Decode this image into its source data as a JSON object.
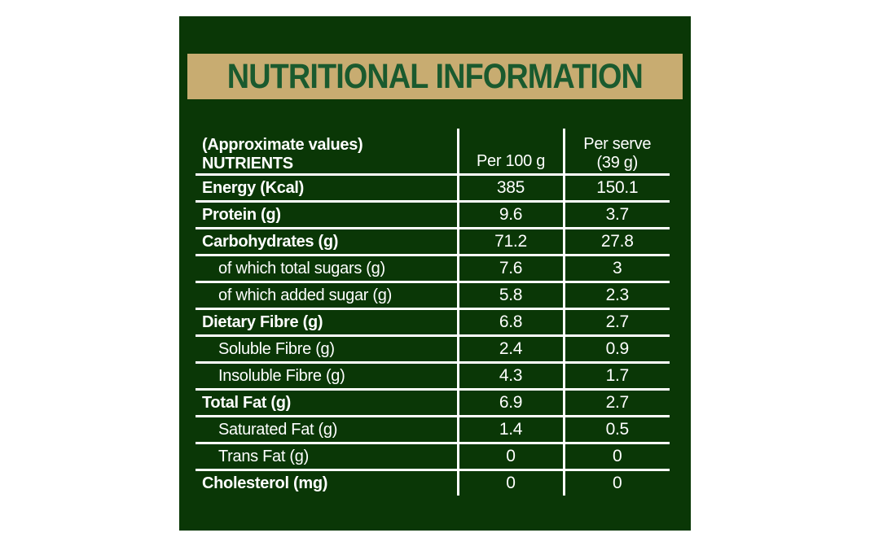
{
  "title": "NUTRITIONAL INFORMATION",
  "colors": {
    "panel_green": "#0a3706",
    "banner_tan": "#c8ac71",
    "title_green": "#1a5a2e",
    "table_text": "#ffffff"
  },
  "table": {
    "header": {
      "approx_label": "(Approximate values)",
      "nutrients_label": "NUTRIENTS",
      "per_100g": "Per 100 g",
      "per_serve_line1": "Per serve",
      "per_serve_line2": "(39 g)"
    },
    "rows": [
      {
        "label": "Energy (Kcal)",
        "per100": "385",
        "perServe": "150.1",
        "bold": true,
        "indent": false
      },
      {
        "label": "Protein (g)",
        "per100": "9.6",
        "perServe": "3.7",
        "bold": true,
        "indent": false
      },
      {
        "label": "Carbohydrates (g)",
        "per100": "71.2",
        "perServe": "27.8",
        "bold": true,
        "indent": false
      },
      {
        "label": "of which total sugars (g)",
        "per100": "7.6",
        "perServe": "3",
        "bold": false,
        "indent": true
      },
      {
        "label": "of which added sugar (g)",
        "per100": "5.8",
        "perServe": "2.3",
        "bold": false,
        "indent": true
      },
      {
        "label": "Dietary Fibre (g)",
        "per100": "6.8",
        "perServe": "2.7",
        "bold": true,
        "indent": false
      },
      {
        "label": "Soluble Fibre (g)",
        "per100": "2.4",
        "perServe": "0.9",
        "bold": false,
        "indent": true
      },
      {
        "label": "Insoluble Fibre (g)",
        "per100": "4.3",
        "perServe": "1.7",
        "bold": false,
        "indent": true
      },
      {
        "label": "Total Fat (g)",
        "per100": "6.9",
        "perServe": "2.7",
        "bold": true,
        "indent": false
      },
      {
        "label": "Saturated Fat (g)",
        "per100": "1.4",
        "perServe": "0.5",
        "bold": false,
        "indent": true
      },
      {
        "label": "Trans Fat (g)",
        "per100": "0",
        "perServe": "0",
        "bold": false,
        "indent": true
      },
      {
        "label": "Cholesterol (mg)",
        "per100": "0",
        "perServe": "0",
        "bold": true,
        "indent": false
      }
    ]
  }
}
